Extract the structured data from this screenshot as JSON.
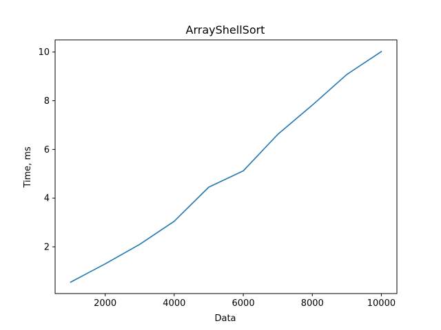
{
  "chart_data": {
    "type": "line",
    "title": "ArrayShellSort",
    "xlabel": "Data",
    "ylabel": "Time, ms",
    "x": [
      1000,
      2000,
      3000,
      4000,
      5000,
      6000,
      7000,
      8000,
      9000,
      10000
    ],
    "series": [
      {
        "values": [
          0.55,
          1.3,
          2.1,
          3.05,
          4.45,
          5.12,
          6.62,
          7.82,
          9.08,
          10.02
        ],
        "color": "#1f77b4"
      }
    ],
    "xlim": [
      550,
      10450
    ],
    "ylim": [
      0.08,
      10.5
    ],
    "xticks": [
      2000,
      4000,
      6000,
      8000,
      10000
    ],
    "yticks": [
      2,
      4,
      6,
      8,
      10
    ],
    "grid": false,
    "legend": "none"
  }
}
